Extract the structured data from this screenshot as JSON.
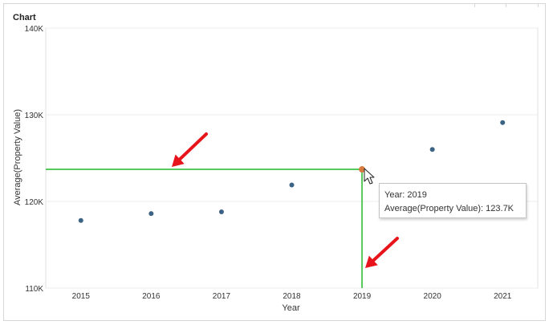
{
  "panel": {
    "title": "Chart"
  },
  "chart_data": {
    "type": "scatter",
    "title": "Chart",
    "xlabel": "Year",
    "ylabel": "Average(Property Value)",
    "x": [
      2015,
      2016,
      2017,
      2018,
      2019,
      2020,
      2021
    ],
    "y": [
      117800,
      118600,
      118800,
      121900,
      123700,
      126000,
      129100
    ],
    "xlim": [
      2014.5,
      2021.5
    ],
    "ylim": [
      110000,
      140000
    ],
    "yticks": [
      110000,
      120000,
      130000,
      140000
    ],
    "ytick_labels": [
      "110K",
      "120K",
      "130K",
      "140K"
    ],
    "xtick_labels": [
      "2015",
      "2016",
      "2017",
      "2018",
      "2019",
      "2020",
      "2021"
    ],
    "grid": true,
    "point_color": "#3d6384",
    "highlight_color": "#d97b3f",
    "crosshair_color": "#55c95a",
    "arrow_color": "#e8141b",
    "highlight_index": 4
  },
  "tooltip": {
    "line1": "Year: 2019",
    "line2": "Average(Property Value): 123.7K"
  }
}
